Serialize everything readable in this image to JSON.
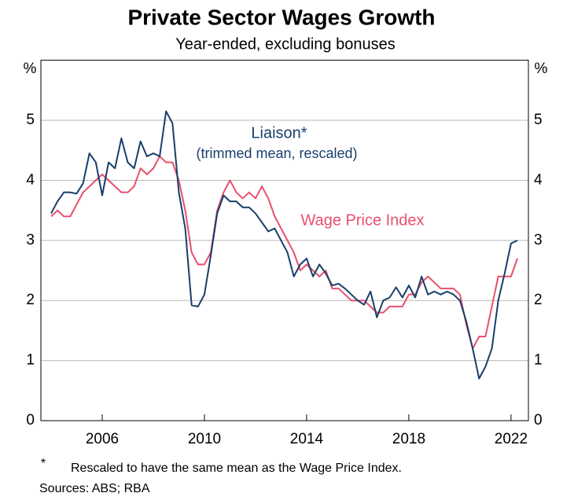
{
  "chart_data": {
    "type": "line",
    "title": "Private Sector Wages Growth",
    "subtitle": "Year-ended, excluding bonuses",
    "y_unit": "%",
    "x": [
      2004.0,
      2004.25,
      2004.5,
      2004.75,
      2005.0,
      2005.25,
      2005.5,
      2005.75,
      2006.0,
      2006.25,
      2006.5,
      2006.75,
      2007.0,
      2007.25,
      2007.5,
      2007.75,
      2008.0,
      2008.25,
      2008.5,
      2008.75,
      2009.0,
      2009.25,
      2009.5,
      2009.75,
      2010.0,
      2010.25,
      2010.5,
      2010.75,
      2011.0,
      2011.25,
      2011.5,
      2011.75,
      2012.0,
      2012.25,
      2012.5,
      2012.75,
      2013.0,
      2013.25,
      2013.5,
      2013.75,
      2014.0,
      2014.25,
      2014.5,
      2014.75,
      2015.0,
      2015.25,
      2015.5,
      2015.75,
      2016.0,
      2016.25,
      2016.5,
      2016.75,
      2017.0,
      2017.25,
      2017.5,
      2017.75,
      2018.0,
      2018.25,
      2018.5,
      2018.75,
      2019.0,
      2019.25,
      2019.5,
      2019.75,
      2020.0,
      2020.25,
      2020.5,
      2020.75,
      2021.0,
      2021.25,
      2021.5,
      2021.75,
      2022.0,
      2022.25
    ],
    "series": [
      {
        "name": "Liaison*",
        "note": "(trimmed mean, rescaled)",
        "color": "#173f6b",
        "values": [
          3.45,
          3.65,
          3.8,
          3.8,
          3.78,
          3.95,
          4.45,
          4.3,
          3.75,
          4.3,
          4.2,
          4.7,
          4.3,
          4.2,
          4.65,
          4.4,
          4.45,
          4.4,
          5.15,
          4.95,
          3.8,
          3.2,
          1.92,
          1.9,
          2.1,
          2.75,
          3.45,
          3.75,
          3.65,
          3.65,
          3.55,
          3.55,
          3.45,
          3.3,
          3.15,
          3.2,
          3.0,
          2.8,
          2.4,
          2.6,
          2.7,
          2.4,
          2.6,
          2.45,
          2.25,
          2.28,
          2.2,
          2.1,
          2.0,
          1.93,
          2.15,
          1.72,
          2.0,
          2.05,
          2.22,
          2.05,
          2.25,
          2.05,
          2.4,
          2.1,
          2.15,
          2.1,
          2.15,
          2.1,
          2.0,
          1.65,
          1.2,
          0.7,
          0.9,
          1.2,
          2.0,
          2.45,
          2.95,
          3.0
        ]
      },
      {
        "name": "Wage Price Index",
        "color": "#e8506d",
        "values": [
          3.4,
          3.5,
          3.4,
          3.4,
          3.6,
          3.8,
          3.9,
          4.0,
          4.1,
          4.0,
          3.9,
          3.8,
          3.8,
          3.9,
          4.2,
          4.1,
          4.2,
          4.4,
          4.3,
          4.3,
          4.0,
          3.5,
          2.8,
          2.6,
          2.6,
          2.8,
          3.5,
          3.8,
          4.0,
          3.8,
          3.7,
          3.8,
          3.7,
          3.9,
          3.7,
          3.4,
          3.2,
          3.0,
          2.8,
          2.5,
          2.6,
          2.5,
          2.4,
          2.5,
          2.2,
          2.2,
          2.1,
          2.0,
          2.0,
          2.0,
          1.9,
          1.8,
          1.8,
          1.9,
          1.9,
          1.9,
          2.1,
          2.1,
          2.3,
          2.4,
          2.3,
          2.2,
          2.2,
          2.2,
          2.1,
          1.6,
          1.2,
          1.4,
          1.4,
          1.9,
          2.4,
          2.4,
          2.4,
          2.7
        ]
      }
    ],
    "xlim": [
      2003.6,
      2022.68
    ],
    "xticks": [
      2006,
      2010,
      2014,
      2018,
      2022
    ],
    "ylim": [
      0,
      6
    ],
    "yticks": [
      0,
      1,
      2,
      3,
      4,
      5
    ],
    "grid": true,
    "footnote_marker": "*",
    "footnote": "Rescaled to have the same mean as the Wage Price Index.",
    "sources": "Sources: ABS; RBA"
  }
}
